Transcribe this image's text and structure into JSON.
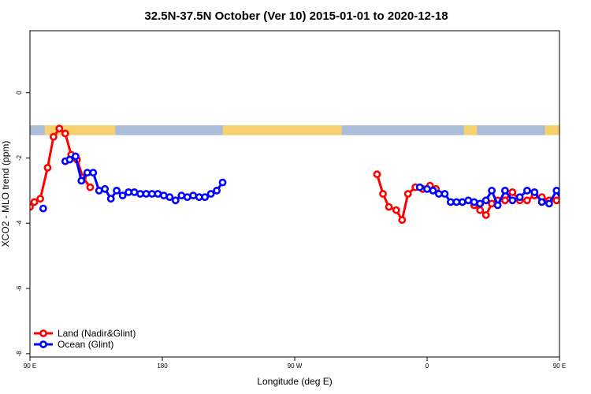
{
  "chart_data": {
    "type": "line",
    "title": "32.5N-37.5N October (Ver 10)   2015-01-01 to 2020-12-18",
    "xlabel": "Longitude (deg E)",
    "ylabel": "XCO2 - MLO trend (ppm)",
    "xlim": [
      90,
      450
    ],
    "ylim": [
      -8.1,
      1.9
    ],
    "x_ticks": [
      {
        "value": 90,
        "label": "90 E"
      },
      {
        "value": 180,
        "label": "180"
      },
      {
        "value": 270,
        "label": "90 W"
      },
      {
        "value": 360,
        "label": "0"
      },
      {
        "value": 450,
        "label": "90 E"
      },
      {
        "value": 540,
        "label": "180"
      }
    ],
    "y_ticks": [
      {
        "value": 0,
        "label": "0"
      },
      {
        "value": -2,
        "label": "-2"
      },
      {
        "value": -4,
        "label": "-4"
      },
      {
        "value": -6,
        "label": "-6"
      },
      {
        "value": -8,
        "label": "-8"
      }
    ],
    "land_band": {
      "y_range": [
        -1.3,
        -1.0
      ],
      "land_color": "#f7d070",
      "ocean_color": "#a9bcd8",
      "land_segments": [
        [
          100,
          148
        ],
        [
          221,
          302
        ],
        [
          385,
          394
        ],
        [
          440,
          505
        ]
      ]
    },
    "series": [
      {
        "name": "Land (Nadir&Glint)",
        "color": "#ff0000",
        "points": [
          [
            90,
            -3.5
          ],
          [
            93,
            -3.35
          ],
          [
            97,
            -3.25
          ],
          [
            102,
            -2.3
          ],
          [
            106,
            -1.35
          ],
          [
            110,
            -1.1
          ],
          [
            114,
            -1.25
          ],
          [
            118,
            -1.9
          ],
          [
            122,
            -2.05
          ],
          [
            126,
            -2.6
          ],
          [
            131,
            -2.9
          ],
          null,
          [
            326,
            -2.5
          ],
          [
            330,
            -3.1
          ],
          [
            334,
            -3.5
          ],
          [
            339,
            -3.6
          ],
          [
            343,
            -3.9
          ],
          [
            347,
            -3.1
          ],
          [
            352,
            -2.9
          ],
          [
            357,
            -2.95
          ],
          [
            362,
            -2.85
          ],
          [
            366,
            -2.95
          ],
          null,
          [
            392,
            -3.45
          ],
          [
            396,
            -3.6
          ],
          [
            400,
            -3.75
          ],
          [
            404,
            -3.4
          ],
          [
            408,
            -3.3
          ],
          [
            413,
            -3.3
          ],
          [
            418,
            -3.05
          ],
          [
            423,
            -3.3
          ],
          [
            428,
            -3.3
          ],
          [
            433,
            -3.15
          ],
          [
            438,
            -3.2
          ],
          [
            443,
            -3.3
          ],
          [
            448,
            -3.3
          ],
          [
            453,
            -3.25
          ],
          [
            458,
            -3.2
          ],
          [
            463,
            -3.2
          ],
          [
            468,
            -3.55
          ],
          [
            472,
            -3.45
          ],
          [
            476,
            -3.7
          ],
          [
            480,
            -3.5
          ],
          [
            484,
            -3.35
          ],
          [
            488,
            -3.25
          ],
          [
            493,
            -2.3
          ],
          [
            497,
            -1.35
          ],
          [
            501,
            -1.1
          ],
          [
            505,
            -1.25
          ],
          [
            509,
            -1.9
          ],
          [
            513,
            -2.05
          ],
          [
            517,
            -2.6
          ],
          [
            522,
            -2.9
          ]
        ]
      },
      {
        "name": "Ocean (Glint)",
        "color": "#0000ff",
        "points": [
          [
            99,
            -3.55
          ],
          null,
          [
            114,
            -2.1
          ],
          [
            117,
            -2.05
          ],
          [
            121,
            -1.95
          ],
          [
            125,
            -2.7
          ],
          [
            129,
            -2.45
          ],
          [
            133,
            -2.45
          ],
          [
            137,
            -3.0
          ],
          [
            141,
            -2.95
          ],
          [
            145,
            -3.25
          ],
          [
            149,
            -3.0
          ],
          [
            153,
            -3.15
          ],
          [
            157,
            -3.05
          ],
          [
            161,
            -3.05
          ],
          [
            165,
            -3.1
          ],
          [
            169,
            -3.1
          ],
          [
            173,
            -3.1
          ],
          [
            177,
            -3.1
          ],
          [
            181,
            -3.15
          ],
          [
            185,
            -3.2
          ],
          [
            189,
            -3.3
          ],
          [
            193,
            -3.15
          ],
          [
            197,
            -3.2
          ],
          [
            201,
            -3.15
          ],
          [
            205,
            -3.2
          ],
          [
            209,
            -3.2
          ],
          [
            213,
            -3.1
          ],
          [
            217,
            -3.0
          ],
          [
            221,
            -2.75
          ],
          null,
          [
            355,
            -2.9
          ],
          [
            360,
            -2.95
          ],
          [
            364,
            -3.0
          ],
          [
            368,
            -3.1
          ],
          [
            372,
            -3.1
          ],
          [
            376,
            -3.35
          ],
          [
            380,
            -3.35
          ],
          [
            384,
            -3.35
          ],
          [
            388,
            -3.3
          ],
          [
            392,
            -3.35
          ],
          [
            396,
            -3.4
          ],
          [
            400,
            -3.3
          ],
          [
            404,
            -3.0
          ],
          [
            408,
            -3.45
          ],
          [
            413,
            -3.0
          ],
          [
            418,
            -3.3
          ],
          [
            423,
            -3.2
          ],
          [
            428,
            -3.0
          ],
          [
            433,
            -3.05
          ],
          [
            438,
            -3.35
          ],
          [
            443,
            -3.4
          ],
          [
            448,
            -3.0
          ],
          [
            453,
            -3.45
          ],
          [
            458,
            -3.45
          ],
          null,
          [
            478,
            -3.1
          ],
          null,
          [
            505,
            -3.55
          ],
          null,
          [
            512,
            -2.1
          ],
          [
            515,
            -2.05
          ],
          [
            519,
            -1.95
          ],
          [
            523,
            -2.7
          ],
          [
            527,
            -2.45
          ],
          [
            531,
            -2.45
          ],
          [
            535,
            -3.0
          ],
          [
            539,
            -2.95
          ],
          [
            543,
            -3.25
          ]
        ]
      }
    ],
    "legend": {
      "position": "bottom-left",
      "entries": [
        "Land (Nadir&Glint)",
        "Ocean (Glint)"
      ]
    },
    "grid": false
  }
}
